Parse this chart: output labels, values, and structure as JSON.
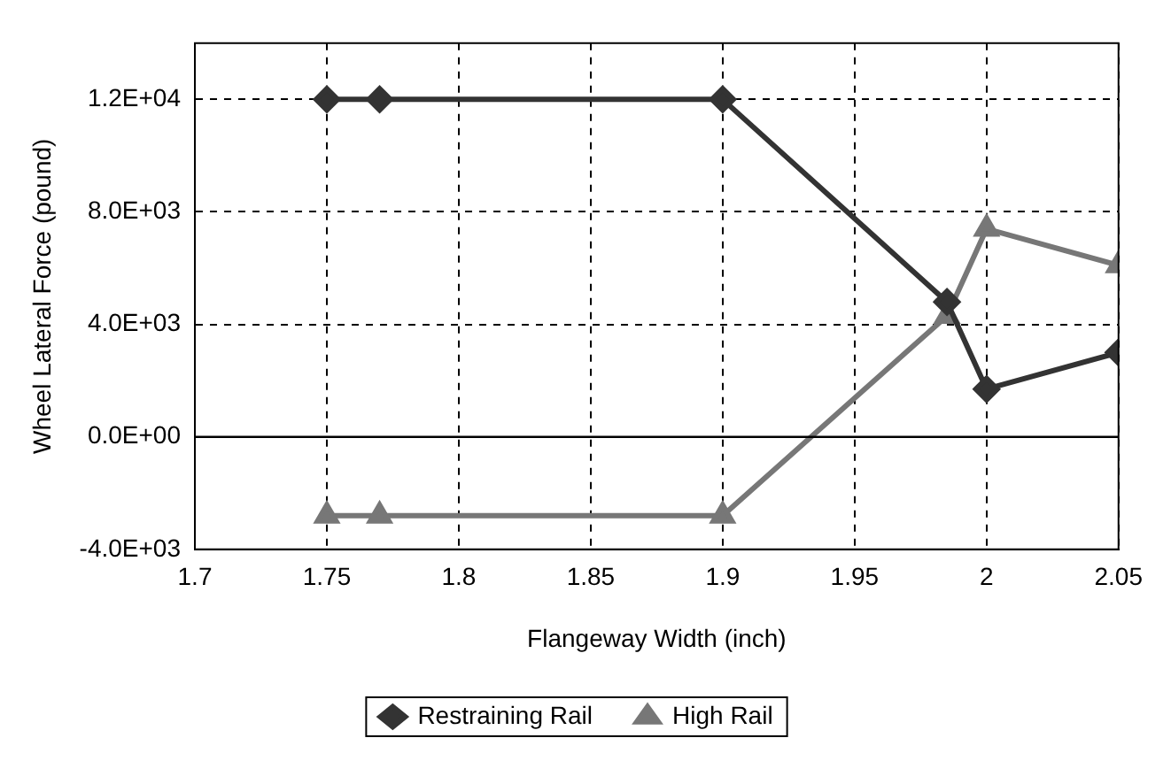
{
  "chart_data": {
    "type": "line",
    "xlabel": "Flangeway Width (inch)",
    "ylabel": "Wheel Lateral Force (pound)",
    "xlim": [
      1.7,
      2.05
    ],
    "xticks": [
      1.7,
      1.75,
      1.8,
      1.85,
      1.9,
      1.95,
      2,
      2.05
    ],
    "ylim": [
      -4000,
      14000
    ],
    "yticks": [
      {
        "value": -4000,
        "label": "-4.0E+03"
      },
      {
        "value": 0,
        "label": "0.0E+00"
      },
      {
        "value": 4000,
        "label": "4.0E+03"
      },
      {
        "value": 8000,
        "label": "8.0E+03"
      },
      {
        "value": 12000,
        "label": "1.2E+04"
      }
    ],
    "x": [
      1.75,
      1.77,
      1.9,
      1.985,
      2.0,
      2.05
    ],
    "series": [
      {
        "name": "Restraining Rail",
        "color": "#333333",
        "marker": "diamond",
        "values": [
          12000,
          12000,
          12000,
          4800,
          1700,
          3000
        ]
      },
      {
        "name": "High Rail",
        "color": "#777777",
        "marker": "triangle",
        "values": [
          -2800,
          -2800,
          -2800,
          4300,
          7400,
          6100
        ]
      }
    ],
    "ref_lines": [
      {
        "axis": "y",
        "value": 0,
        "color": "#000000",
        "line_style": "solid"
      }
    ],
    "grid": true,
    "legend": "bottom"
  }
}
